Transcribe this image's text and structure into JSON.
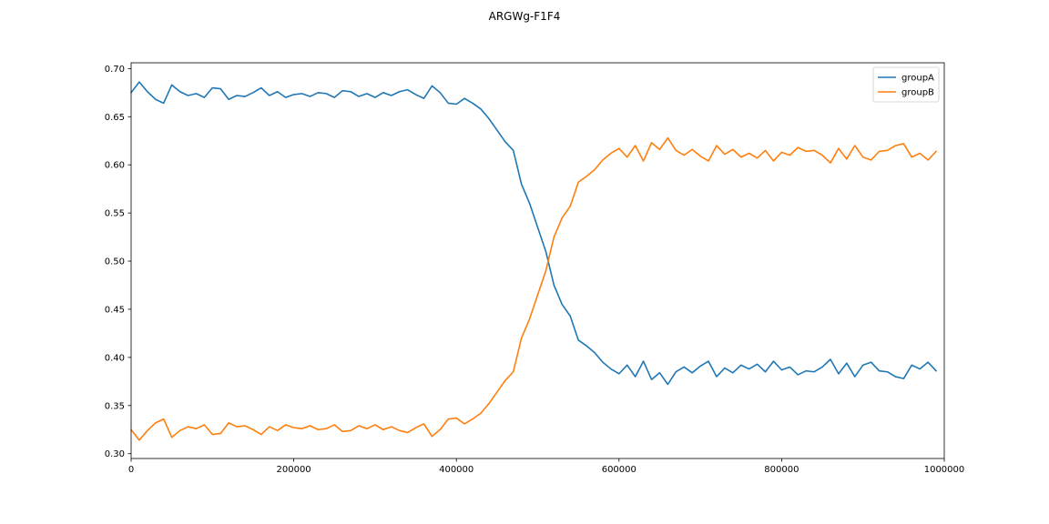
{
  "chart_data": {
    "type": "line",
    "title": "ARGWg-F1F4",
    "xlabel": "",
    "ylabel": "",
    "xlim": [
      0,
      1000000
    ],
    "ylim": [
      0.295,
      0.706
    ],
    "xticks": [
      0,
      200000,
      400000,
      600000,
      800000,
      1000000
    ],
    "xtick_labels": [
      "0",
      "200000",
      "400000",
      "600000",
      "800000",
      "1000000"
    ],
    "yticks": [
      0.3,
      0.35,
      0.4,
      0.45,
      0.5,
      0.55,
      0.6,
      0.65,
      0.7
    ],
    "ytick_labels": [
      "0.30",
      "0.35",
      "0.40",
      "0.45",
      "0.50",
      "0.55",
      "0.60",
      "0.65",
      "0.70"
    ],
    "grid": false,
    "legend_position": "top-right",
    "x": [
      0,
      10000,
      20000,
      30000,
      40000,
      50000,
      60000,
      70000,
      80000,
      90000,
      100000,
      110000,
      120000,
      130000,
      140000,
      150000,
      160000,
      170000,
      180000,
      190000,
      200000,
      210000,
      220000,
      230000,
      240000,
      250000,
      260000,
      270000,
      280000,
      290000,
      300000,
      310000,
      320000,
      330000,
      340000,
      350000,
      360000,
      370000,
      380000,
      390000,
      400000,
      410000,
      420000,
      430000,
      440000,
      450000,
      460000,
      470000,
      480000,
      490000,
      500000,
      510000,
      520000,
      530000,
      540000,
      550000,
      560000,
      570000,
      580000,
      590000,
      600000,
      610000,
      620000,
      630000,
      640000,
      650000,
      660000,
      670000,
      680000,
      690000,
      700000,
      710000,
      720000,
      730000,
      740000,
      750000,
      760000,
      770000,
      780000,
      790000,
      800000,
      810000,
      820000,
      830000,
      840000,
      850000,
      860000,
      870000,
      880000,
      890000,
      900000,
      910000,
      920000,
      930000,
      940000,
      950000,
      960000,
      970000,
      980000,
      990000
    ],
    "series": [
      {
        "name": "groupA",
        "color": "#1f77b4",
        "values": [
          0.675,
          0.686,
          0.676,
          0.668,
          0.664,
          0.683,
          0.676,
          0.672,
          0.674,
          0.67,
          0.68,
          0.679,
          0.668,
          0.672,
          0.671,
          0.675,
          0.68,
          0.672,
          0.676,
          0.67,
          0.673,
          0.674,
          0.671,
          0.675,
          0.674,
          0.67,
          0.677,
          0.676,
          0.671,
          0.674,
          0.67,
          0.675,
          0.672,
          0.676,
          0.678,
          0.673,
          0.669,
          0.682,
          0.675,
          0.664,
          0.663,
          0.669,
          0.664,
          0.658,
          0.648,
          0.636,
          0.624,
          0.615,
          0.58,
          0.56,
          0.535,
          0.51,
          0.475,
          0.455,
          0.443,
          0.418,
          0.412,
          0.405,
          0.395,
          0.388,
          0.383,
          0.392,
          0.38,
          0.396,
          0.377,
          0.384,
          0.372,
          0.385,
          0.39,
          0.384,
          0.391,
          0.396,
          0.38,
          0.389,
          0.384,
          0.392,
          0.388,
          0.393,
          0.385,
          0.396,
          0.387,
          0.39,
          0.382,
          0.386,
          0.385,
          0.39,
          0.398,
          0.383,
          0.394,
          0.38,
          0.392,
          0.395,
          0.386,
          0.385,
          0.38,
          0.378,
          0.392,
          0.388,
          0.395,
          0.386
        ]
      },
      {
        "name": "groupB",
        "color": "#ff7f0e",
        "values": [
          0.325,
          0.314,
          0.324,
          0.332,
          0.336,
          0.317,
          0.324,
          0.328,
          0.326,
          0.33,
          0.32,
          0.321,
          0.332,
          0.328,
          0.329,
          0.325,
          0.32,
          0.328,
          0.324,
          0.33,
          0.327,
          0.326,
          0.329,
          0.325,
          0.326,
          0.33,
          0.323,
          0.324,
          0.329,
          0.326,
          0.33,
          0.325,
          0.328,
          0.324,
          0.322,
          0.327,
          0.331,
          0.318,
          0.325,
          0.336,
          0.337,
          0.331,
          0.336,
          0.342,
          0.352,
          0.364,
          0.376,
          0.385,
          0.42,
          0.44,
          0.465,
          0.49,
          0.525,
          0.545,
          0.557,
          0.582,
          0.588,
          0.595,
          0.605,
          0.612,
          0.617,
          0.608,
          0.62,
          0.604,
          0.623,
          0.616,
          0.628,
          0.615,
          0.61,
          0.616,
          0.609,
          0.604,
          0.62,
          0.611,
          0.616,
          0.608,
          0.612,
          0.607,
          0.615,
          0.604,
          0.613,
          0.61,
          0.618,
          0.614,
          0.615,
          0.61,
          0.602,
          0.617,
          0.606,
          0.62,
          0.608,
          0.605,
          0.614,
          0.615,
          0.62,
          0.622,
          0.608,
          0.612,
          0.605,
          0.614
        ]
      }
    ]
  }
}
